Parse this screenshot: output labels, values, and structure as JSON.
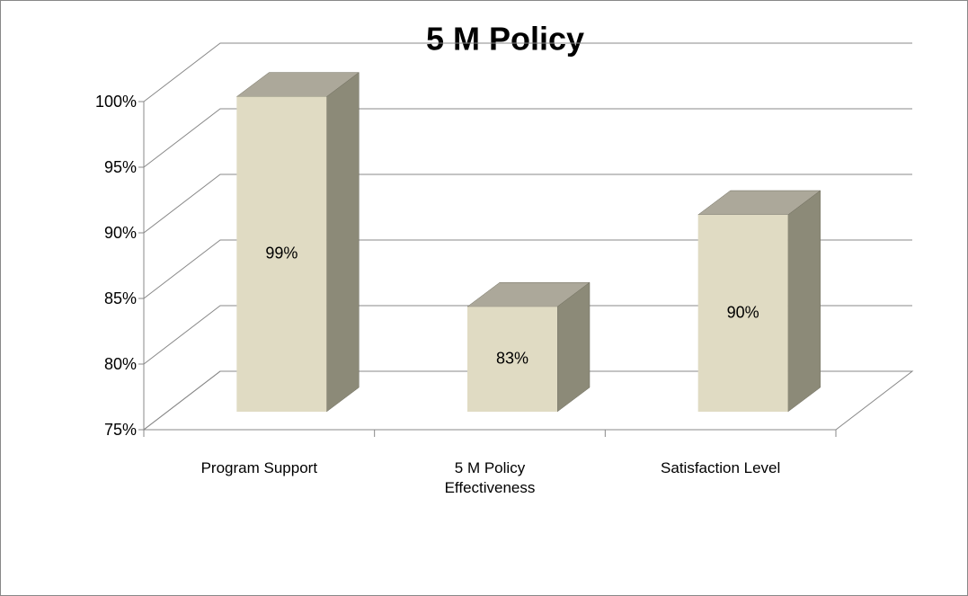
{
  "chart_data": {
    "type": "bar3d",
    "title": "5 M Policy",
    "categories": [
      "Program Support",
      "5 M Policy Effectiveness",
      "Satisfaction Level"
    ],
    "values": [
      99,
      83,
      90
    ],
    "value_labels": [
      "99%",
      "83%",
      "90%"
    ],
    "color": "#e0dbc3",
    "ylim": [
      75,
      100
    ],
    "yticks": [
      {
        "value": 75,
        "label": "75%"
      },
      {
        "value": 80,
        "label": "80%"
      },
      {
        "value": 85,
        "label": "85%"
      },
      {
        "value": 90,
        "label": "90%"
      },
      {
        "value": 95,
        "label": "95%"
      },
      {
        "value": 100,
        "label": "100%"
      }
    ],
    "grid": true
  }
}
